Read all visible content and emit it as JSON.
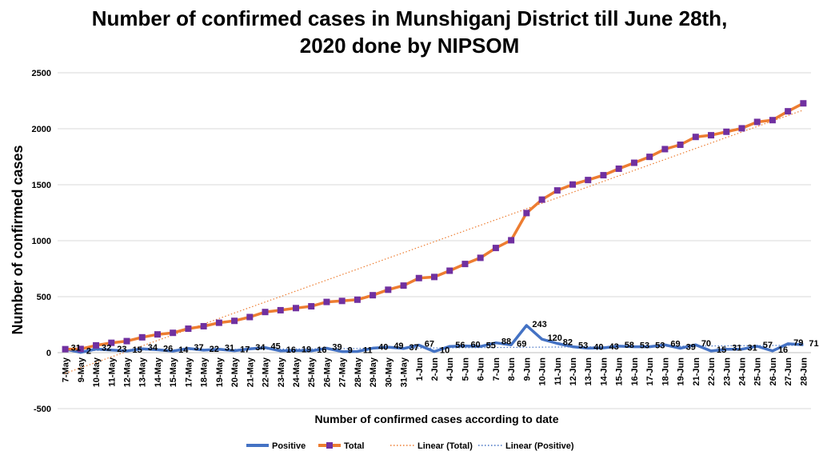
{
  "chart_data": {
    "type": "line",
    "title_lines": [
      "Number of confirmed cases in Munshiganj District till June 28th,",
      "2020 done by NIPSOM"
    ],
    "xlabel": "Number of confirmed cases according to date",
    "ylabel": "Number of confirmed cases",
    "ylim": [
      -500,
      2500
    ],
    "yticks": [
      -500,
      0,
      500,
      1000,
      1500,
      2000,
      2500
    ],
    "grid": true,
    "legend_position": "bottom",
    "categories": [
      "7-May",
      "9-May",
      "10-May",
      "11-May",
      "12-May",
      "13-May",
      "14-May",
      "15-May",
      "17-May",
      "18-May",
      "19-May",
      "20-May",
      "21-May",
      "22-May",
      "23-May",
      "24-May",
      "25-May",
      "26-May",
      "27-May",
      "28-May",
      "29-May",
      "30-May",
      "31-May",
      "1-Jun",
      "2-Jun",
      "4-Jun",
      "5-Jun",
      "6-Jun",
      "7-Jun",
      "8-Jun",
      "9-Jun",
      "10-Jun",
      "11-Jun",
      "12-Jun",
      "13-Jun",
      "14-Jun",
      "15-Jun",
      "16-Jun",
      "17-Jun",
      "18-Jun",
      "19-Jun",
      "21-Jun",
      "22-Jun",
      "23-Jun",
      "24-Jun",
      "25-Jun",
      "26-Jun",
      "27-Jun",
      "28-Jun"
    ],
    "series": [
      {
        "name": "Positive",
        "color": "#4472C4",
        "values": [
          31,
          2,
          32,
          23,
          15,
          34,
          26,
          14,
          37,
          22,
          31,
          17,
          34,
          45,
          16,
          19,
          16,
          39,
          9,
          11,
          40,
          49,
          37,
          67,
          10,
          56,
          60,
          55,
          88,
          69,
          243,
          120,
          82,
          53,
          40,
          43,
          58,
          53,
          53,
          69,
          39,
          70,
          15,
          31,
          31,
          57,
          16,
          79,
          71
        ],
        "labels": [
          "31",
          "2",
          "32",
          "23",
          "15",
          "34",
          "26",
          "14",
          "37",
          "22",
          "31",
          "17",
          "34",
          "45",
          "16",
          "19",
          "16",
          "39",
          "9",
          "11",
          "40",
          "49",
          "37",
          "67",
          "10",
          "56",
          "60",
          "55",
          "88",
          "69",
          "243",
          "120",
          "82",
          "53",
          "40",
          "43",
          "58",
          "53",
          "53",
          "69",
          "39",
          "70",
          "15",
          "31",
          "31",
          "57",
          "16",
          "79",
          "71"
        ]
      },
      {
        "name": "Total",
        "color": "#ED7D31",
        "marker_color": "#7030A0",
        "values": [
          31,
          33,
          65,
          88,
          103,
          137,
          163,
          177,
          214,
          236,
          267,
          284,
          318,
          363,
          379,
          398,
          414,
          453,
          462,
          473,
          513,
          562,
          599,
          666,
          676,
          732,
          792,
          847,
          935,
          1004,
          1247,
          1367,
          1449,
          1502,
          1542,
          1585,
          1643,
          1696,
          1749,
          1818,
          1857,
          1927,
          1942,
          1973,
          2004,
          2061,
          2077,
          2156,
          2227
        ]
      },
      {
        "name": "Linear (Total)",
        "color": "#ED7D31",
        "style": "dotted",
        "values": [
          -185,
          -136,
          -87,
          -38,
          11,
          60,
          109,
          158,
          207,
          256,
          305,
          354,
          403,
          452,
          501,
          550,
          599,
          648,
          697,
          746,
          795,
          844,
          893,
          942,
          991,
          1040,
          1089,
          1138,
          1187,
          1236,
          1285,
          1334,
          1383,
          1432,
          1481,
          1530,
          1579,
          1628,
          1677,
          1726,
          1775,
          1824,
          1873,
          1922,
          1971,
          2020,
          2069,
          2118,
          2167
        ]
      },
      {
        "name": "Linear (Positive)",
        "color": "#4472C4",
        "style": "dotted",
        "values": [
          18,
          19,
          20,
          21,
          22,
          23,
          24,
          25,
          26,
          27,
          28,
          29,
          30,
          31,
          32,
          33,
          34,
          35,
          36,
          37,
          38,
          39,
          40,
          41,
          42,
          43,
          44,
          45,
          46,
          47,
          48,
          49,
          50,
          51,
          52,
          53,
          54,
          55,
          56,
          57,
          58,
          59,
          60,
          61,
          62,
          63,
          64,
          65,
          66
        ]
      }
    ]
  }
}
